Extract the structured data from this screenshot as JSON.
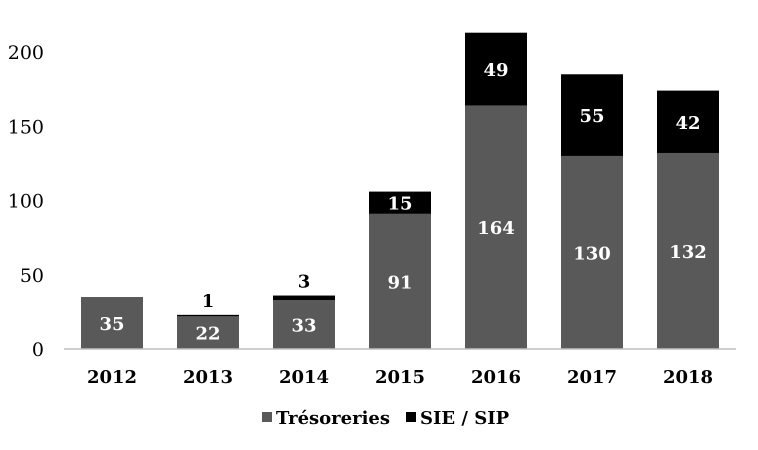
{
  "chart_data": {
    "type": "bar",
    "stacked": true,
    "categories": [
      "2012",
      "2013",
      "2014",
      "2015",
      "2016",
      "2017",
      "2018"
    ],
    "series": [
      {
        "name": "Trésoreries",
        "color": "#595959",
        "values": [
          35,
          22,
          33,
          91,
          164,
          130,
          132
        ]
      },
      {
        "name": "SIE / SIP",
        "color": "#000000",
        "values": [
          0,
          1,
          3,
          15,
          49,
          55,
          42
        ]
      }
    ],
    "y_ticks": [
      "0",
      "50",
      "100",
      "150",
      "200"
    ],
    "ylim": [
      0,
      200
    ],
    "grid": false,
    "legend_position": "bottom-center"
  }
}
